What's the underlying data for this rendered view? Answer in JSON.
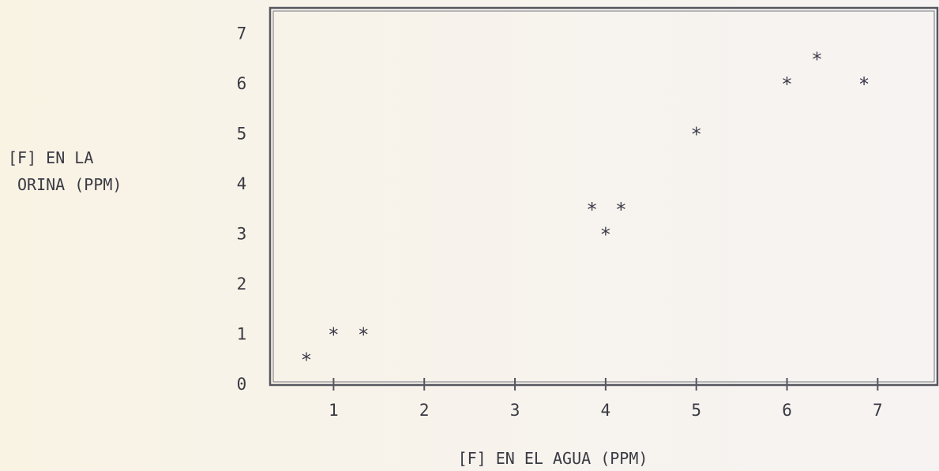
{
  "chart_data": {
    "type": "scatter",
    "title": "",
    "xlabel": "[F] EN EL AGUA (PPM)",
    "ylabel_lines": [
      "[F]  EN LA",
      "ORINA (PPM)"
    ],
    "xlim": [
      0.3,
      7.65
    ],
    "ylim": [
      0,
      7.5
    ],
    "x_ticks": [
      "1",
      "2",
      "3",
      "4",
      "5",
      "6",
      "7"
    ],
    "y_ticks": [
      "0",
      "1",
      "2",
      "3",
      "4",
      "5",
      "6",
      "7"
    ],
    "marker": "*",
    "grid": false,
    "points": [
      {
        "x": 0.7,
        "y": 0.5
      },
      {
        "x": 1.0,
        "y": 1.0
      },
      {
        "x": 1.33,
        "y": 1.0
      },
      {
        "x": 3.85,
        "y": 3.5
      },
      {
        "x": 4.0,
        "y": 3.0
      },
      {
        "x": 4.17,
        "y": 3.5
      },
      {
        "x": 5.0,
        "y": 5.0
      },
      {
        "x": 6.0,
        "y": 6.0
      },
      {
        "x": 6.33,
        "y": 6.5
      },
      {
        "x": 6.85,
        "y": 6.0
      }
    ]
  }
}
